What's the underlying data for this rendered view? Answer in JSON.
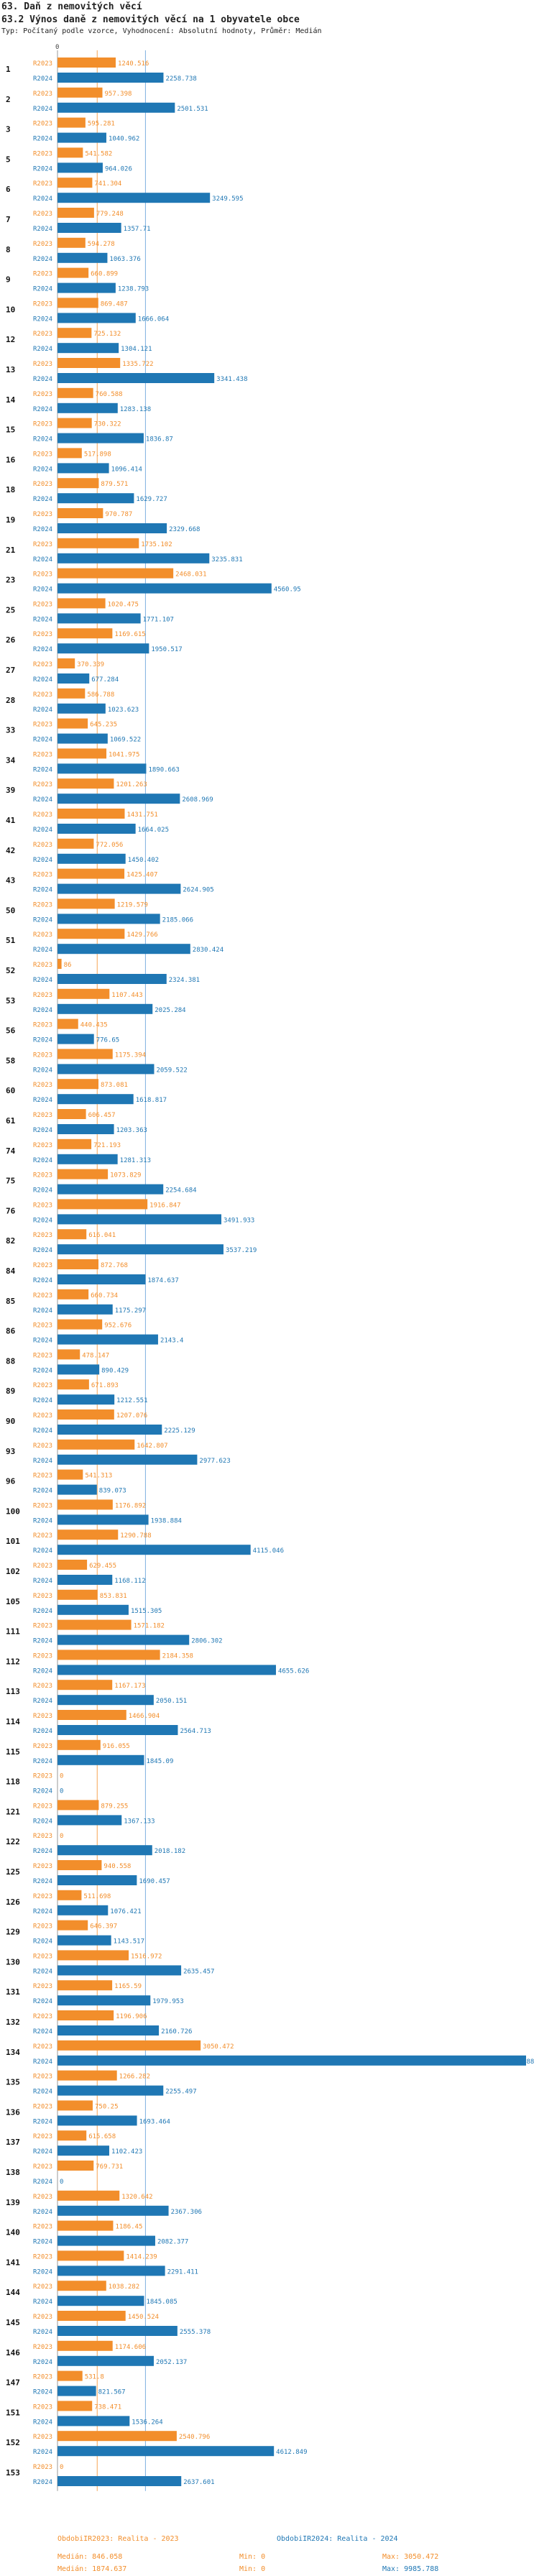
{
  "header": {
    "title": "63. Daň z nemovitých věcí",
    "subtitle": "63.2 Výnos daně z nemovitých věcí na 1 obyvatele obce",
    "note": "Typ: Počítaný podle vzorce, Vyhodnocení: Absolutní hodnoty, Průměr: Medián"
  },
  "colors": {
    "orange": "#f28e2b",
    "blue": "#1f77b4",
    "median_line": "#6fa8dc",
    "axis": "#9a9a9a"
  },
  "chart_data": {
    "type": "bar",
    "orientation": "horizontal",
    "axis_label": "0",
    "series": [
      {
        "name": "R2023",
        "color": "#f28e2b"
      },
      {
        "name": "R2024",
        "color": "#1f77b4"
      }
    ],
    "groups": [
      {
        "id": "1",
        "v2023": "1240.516",
        "v2024": "2258.738"
      },
      {
        "id": "2",
        "v2023": "957.398",
        "v2024": "2501.531"
      },
      {
        "id": "3",
        "v2023": "595.281",
        "v2024": "1040.962"
      },
      {
        "id": "5",
        "v2023": "541.582",
        "v2024": "964.026"
      },
      {
        "id": "6",
        "v2023": "741.304",
        "v2024": "3249.595"
      },
      {
        "id": "7",
        "v2023": "779.248",
        "v2024": "1357.71"
      },
      {
        "id": "8",
        "v2023": "594.278",
        "v2024": "1063.376"
      },
      {
        "id": "9",
        "v2023": "660.899",
        "v2024": "1238.793"
      },
      {
        "id": "10",
        "v2023": "869.487",
        "v2024": "1666.064"
      },
      {
        "id": "12",
        "v2023": "725.132",
        "v2024": "1304.121"
      },
      {
        "id": "13",
        "v2023": "1335.722",
        "v2024": "3341.438"
      },
      {
        "id": "14",
        "v2023": "760.588",
        "v2024": "1283.138"
      },
      {
        "id": "15",
        "v2023": "730.322",
        "v2024": "1836.87"
      },
      {
        "id": "16",
        "v2023": "517.898",
        "v2024": "1096.414"
      },
      {
        "id": "18",
        "v2023": "879.571",
        "v2024": "1629.727"
      },
      {
        "id": "19",
        "v2023": "970.787",
        "v2024": "2329.668"
      },
      {
        "id": "21",
        "v2023": "1735.102",
        "v2024": "3235.831"
      },
      {
        "id": "23",
        "v2023": "2468.031",
        "v2024": "4560.95"
      },
      {
        "id": "25",
        "v2023": "1020.475",
        "v2024": "1771.107"
      },
      {
        "id": "26",
        "v2023": "1169.615",
        "v2024": "1950.517"
      },
      {
        "id": "27",
        "v2023": "370.339",
        "v2024": "677.284"
      },
      {
        "id": "28",
        "v2023": "586.788",
        "v2024": "1023.623"
      },
      {
        "id": "33",
        "v2023": "645.235",
        "v2024": "1069.522"
      },
      {
        "id": "34",
        "v2023": "1041.975",
        "v2024": "1890.663"
      },
      {
        "id": "39",
        "v2023": "1201.263",
        "v2024": "2608.969"
      },
      {
        "id": "41",
        "v2023": "1431.751",
        "v2024": "1664.025"
      },
      {
        "id": "42",
        "v2023": "772.056",
        "v2024": "1450.402"
      },
      {
        "id": "43",
        "v2023": "1425.407",
        "v2024": "2624.905"
      },
      {
        "id": "50",
        "v2023": "1219.579",
        "v2024": "2185.066"
      },
      {
        "id": "51",
        "v2023": "1429.766",
        "v2024": "2830.424"
      },
      {
        "id": "52",
        "v2023": "86",
        "v2024": "2324.381"
      },
      {
        "id": "53",
        "v2023": "1107.443",
        "v2024": "2025.284"
      },
      {
        "id": "56",
        "v2023": "440.435",
        "v2024": "776.65"
      },
      {
        "id": "58",
        "v2023": "1175.394",
        "v2024": "2059.522"
      },
      {
        "id": "60",
        "v2023": "873.081",
        "v2024": "1618.817"
      },
      {
        "id": "61",
        "v2023": "606.457",
        "v2024": "1203.363"
      },
      {
        "id": "74",
        "v2023": "721.193",
        "v2024": "1281.313"
      },
      {
        "id": "75",
        "v2023": "1073.829",
        "v2024": "2254.684"
      },
      {
        "id": "76",
        "v2023": "1916.847",
        "v2024": "3491.933"
      },
      {
        "id": "82",
        "v2023": "616.041",
        "v2024": "3537.219"
      },
      {
        "id": "84",
        "v2023": "872.768",
        "v2024": "1874.637"
      },
      {
        "id": "85",
        "v2023": "660.734",
        "v2024": "1175.297"
      },
      {
        "id": "86",
        "v2023": "952.676",
        "v2024": "2143.4"
      },
      {
        "id": "88",
        "v2023": "478.147",
        "v2024": "890.429"
      },
      {
        "id": "89",
        "v2023": "671.893",
        "v2024": "1212.551"
      },
      {
        "id": "90",
        "v2023": "1207.076",
        "v2024": "2225.129"
      },
      {
        "id": "93",
        "v2023": "1642.807",
        "v2024": "2977.623"
      },
      {
        "id": "96",
        "v2023": "541.313",
        "v2024": "839.073"
      },
      {
        "id": "100",
        "v2023": "1176.892",
        "v2024": "1938.884"
      },
      {
        "id": "101",
        "v2023": "1290.788",
        "v2024": "4115.046"
      },
      {
        "id": "102",
        "v2023": "629.455",
        "v2024": "1168.112"
      },
      {
        "id": "105",
        "v2023": "853.831",
        "v2024": "1515.305"
      },
      {
        "id": "111",
        "v2023": "1571.182",
        "v2024": "2806.302"
      },
      {
        "id": "112",
        "v2023": "2184.358",
        "v2024": "4655.626"
      },
      {
        "id": "113",
        "v2023": "1167.173",
        "v2024": "2050.151"
      },
      {
        "id": "114",
        "v2023": "1466.904",
        "v2024": "2564.713"
      },
      {
        "id": "115",
        "v2023": "916.055",
        "v2024": "1845.09"
      },
      {
        "id": "118",
        "v2023": "0",
        "v2024": "0"
      },
      {
        "id": "121",
        "v2023": "879.255",
        "v2024": "1367.133"
      },
      {
        "id": "122",
        "v2023": "0",
        "v2024": "2018.182"
      },
      {
        "id": "125",
        "v2023": "940.558",
        "v2024": "1690.457"
      },
      {
        "id": "126",
        "v2023": "511.698",
        "v2024": "1076.421"
      },
      {
        "id": "129",
        "v2023": "646.397",
        "v2024": "1143.517"
      },
      {
        "id": "130",
        "v2023": "1516.972",
        "v2024": "2635.457"
      },
      {
        "id": "131",
        "v2023": "1165.59",
        "v2024": "1979.953"
      },
      {
        "id": "132",
        "v2023": "1196.906",
        "v2024": "2160.726"
      },
      {
        "id": "134",
        "v2023": "3050.472",
        "v2024": "9985.788"
      },
      {
        "id": "135",
        "v2023": "1266.282",
        "v2024": "2255.497"
      },
      {
        "id": "136",
        "v2023": "750.25",
        "v2024": "1693.464"
      },
      {
        "id": "137",
        "v2023": "615.658",
        "v2024": "1102.423"
      },
      {
        "id": "138",
        "v2023": "769.731",
        "v2024": "0"
      },
      {
        "id": "139",
        "v2023": "1320.642",
        "v2024": "2367.306"
      },
      {
        "id": "140",
        "v2023": "1186.45",
        "v2024": "2082.377"
      },
      {
        "id": "141",
        "v2023": "1414.239",
        "v2024": "2291.411"
      },
      {
        "id": "144",
        "v2023": "1038.282",
        "v2024": "1845.085"
      },
      {
        "id": "145",
        "v2023": "1450.524",
        "v2024": "2555.378"
      },
      {
        "id": "146",
        "v2023": "1174.606",
        "v2024": "2052.137"
      },
      {
        "id": "147",
        "v2023": "531.8",
        "v2024": "821.567"
      },
      {
        "id": "151",
        "v2023": "738.471",
        "v2024": "1536.264"
      },
      {
        "id": "152",
        "v2023": "2540.796",
        "v2024": "4612.849"
      },
      {
        "id": "153",
        "v2023": "0",
        "v2024": "2637.601"
      }
    ],
    "axis_max": 9985.788,
    "median_2023": 846.058,
    "median_2024": 1874.637
  },
  "footer": {
    "legend_2023": "ObdobiIR2023: Realita - 2023",
    "legend_2024": "ObdobiIR2024: Realita - 2024",
    "median_2023": "Medián: 846.058",
    "min_2023": "Min: 0",
    "max_2023": "Max: 3050.472",
    "median_2024": "Medián: 1874.637",
    "min_2024": "Min: 0",
    "max_2024": "Max: 9985.788"
  }
}
